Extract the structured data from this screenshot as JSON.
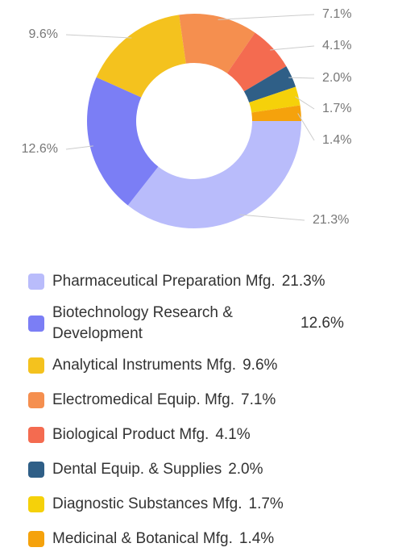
{
  "chart_data": {
    "type": "pie",
    "categories": [
      "Pharmaceutical Preparation Mfg.",
      "Biotechnology Research & Development",
      "Analytical Instruments Mfg.",
      "Electromedical Equip. Mfg.",
      "Biological Product Mfg.",
      "Dental Equip. & Supplies",
      "Diagnostic Substances Mfg.",
      "Medicinal & Botanical Mfg."
    ],
    "values": [
      21.3,
      12.6,
      9.6,
      7.1,
      4.1,
      2.0,
      1.7,
      1.4
    ],
    "value_labels": [
      "21.3%",
      "12.6%",
      "9.6%",
      "7.1%",
      "4.1%",
      "2.0%",
      "1.7%",
      "1.4%"
    ],
    "colors": [
      "#b9bcfb",
      "#7b7ef5",
      "#f4c21e",
      "#f58f4f",
      "#f46b50",
      "#2f5f87",
      "#f5d10a",
      "#f5a20c"
    ],
    "donut": true,
    "legend": "bottom"
  }
}
